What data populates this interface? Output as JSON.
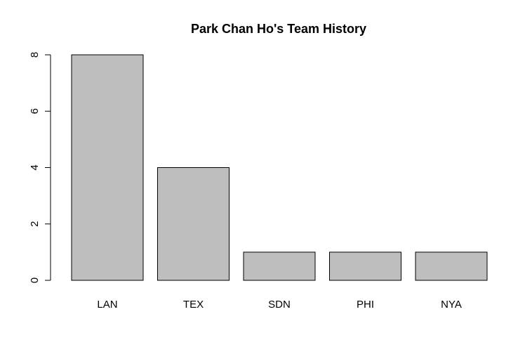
{
  "chart_data": {
    "type": "bar",
    "title": "Park Chan Ho's Team History",
    "xlabel": "",
    "ylabel": "",
    "categories": [
      "LAN",
      "TEX",
      "SDN",
      "PHI",
      "NYA"
    ],
    "values": [
      8,
      4,
      1,
      1,
      1
    ],
    "ylim": [
      0,
      8
    ],
    "yticks": [
      0,
      2,
      4,
      6,
      8
    ],
    "grid": false,
    "legend": "none",
    "bar_color": "#bebebe",
    "border_color": "#000000"
  }
}
